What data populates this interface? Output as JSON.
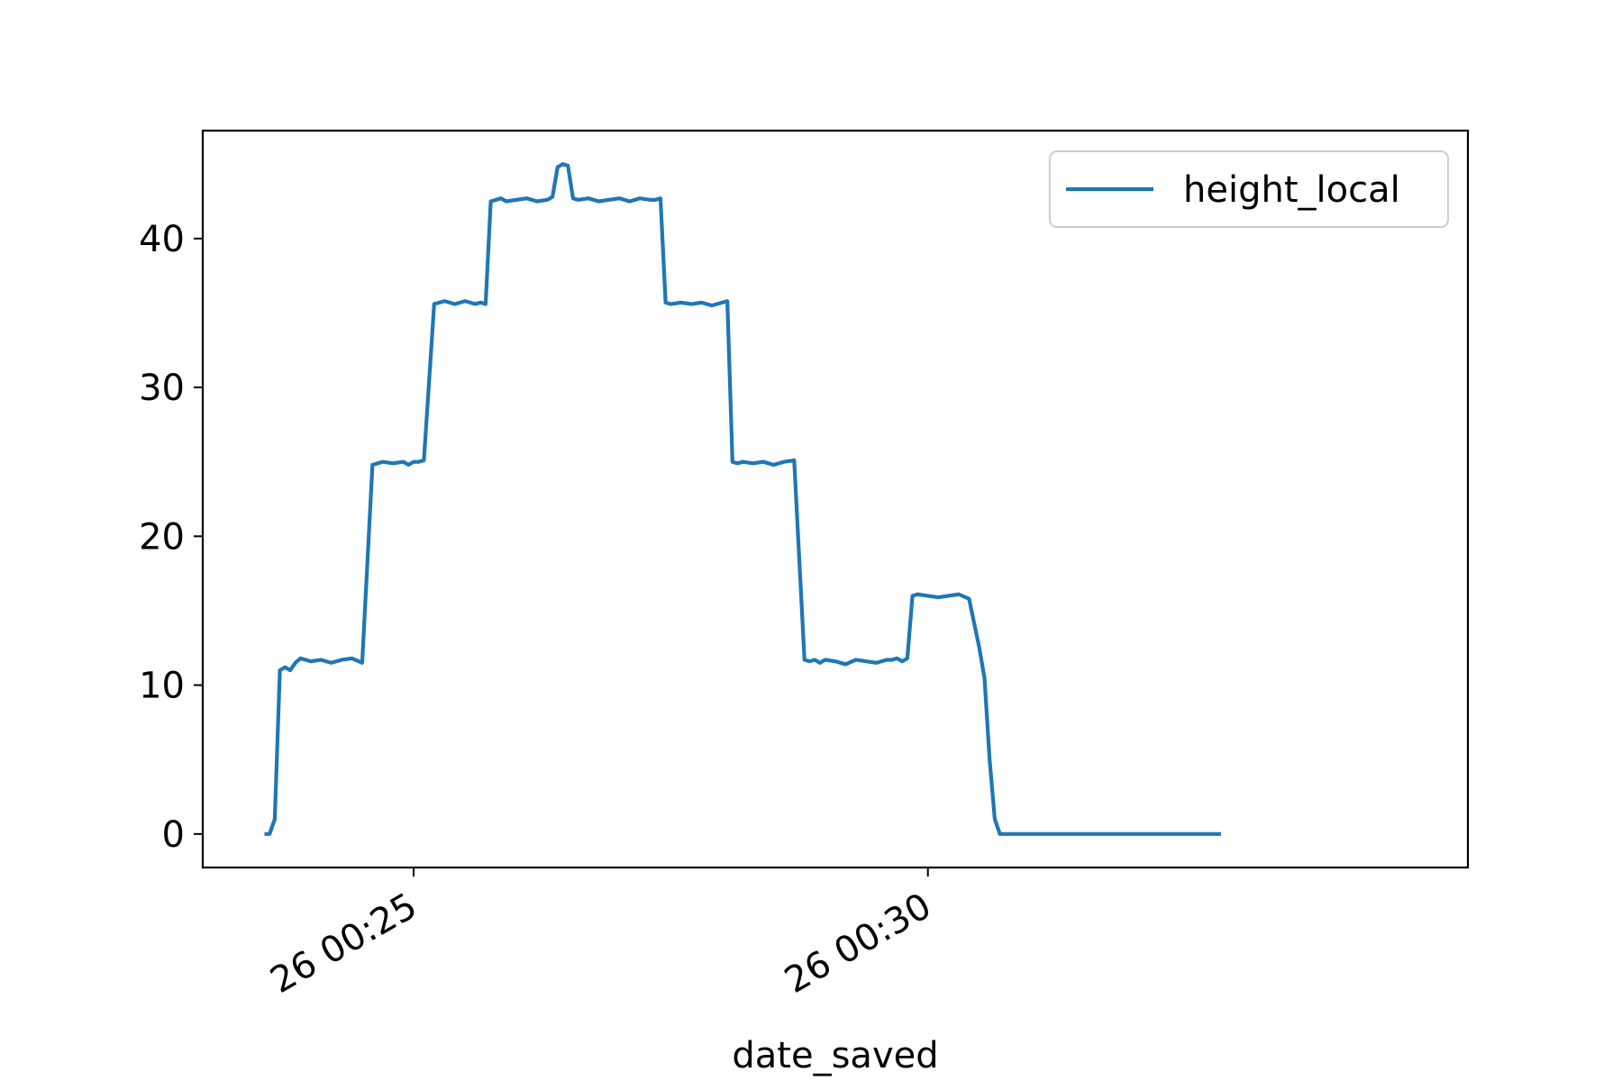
{
  "chart_data": {
    "type": "line",
    "xlabel": "date_saved",
    "ylabel": "",
    "title": "",
    "x_unit": "minutes (plotted in mm:ss relative to 00:20 as fractional minutes)",
    "xlim": [
      22.95,
      35.25
    ],
    "ylim": [
      -2.25,
      47.25
    ],
    "x_ticks": [
      {
        "value": 25,
        "label": "26 00:25"
      },
      {
        "value": 30,
        "label": "26 00:30"
      }
    ],
    "y_ticks": [
      {
        "value": 0,
        "label": "0"
      },
      {
        "value": 10,
        "label": "10"
      },
      {
        "value": 20,
        "label": "20"
      },
      {
        "value": 30,
        "label": "30"
      },
      {
        "value": 40,
        "label": "40"
      }
    ],
    "grid": false,
    "legend": {
      "position": "top-right",
      "entries": [
        "height_local"
      ]
    },
    "series": [
      {
        "name": "height_local",
        "color": "#1f77b4",
        "x": [
          23.55,
          23.6,
          23.65,
          23.7,
          23.75,
          23.8,
          23.85,
          23.9,
          24.0,
          24.1,
          24.2,
          24.3,
          24.4,
          24.5,
          24.6,
          24.7,
          24.8,
          24.9,
          24.95,
          25.0,
          25.05,
          25.1,
          25.2,
          25.3,
          25.4,
          25.5,
          25.6,
          25.65,
          25.7,
          25.75,
          25.8,
          25.85,
          25.9,
          26.0,
          26.1,
          26.2,
          26.3,
          26.35,
          26.4,
          26.45,
          26.5,
          26.55,
          26.6,
          26.7,
          26.8,
          26.9,
          27.0,
          27.1,
          27.2,
          27.3,
          27.35,
          27.4,
          27.45,
          27.5,
          27.6,
          27.7,
          27.8,
          27.9,
          28.0,
          28.05,
          28.1,
          28.15,
          28.2,
          28.3,
          28.4,
          28.5,
          28.6,
          28.7,
          28.8,
          28.85,
          28.9,
          28.95,
          29.0,
          29.1,
          29.2,
          29.3,
          29.4,
          29.5,
          29.6,
          29.65,
          29.7,
          29.75,
          29.8,
          29.85,
          29.9,
          30.0,
          30.1,
          30.2,
          30.3,
          30.4,
          30.5,
          30.55,
          30.6,
          30.65,
          30.7,
          30.75,
          30.8,
          30.85,
          30.9,
          30.95,
          31.0,
          31.05,
          31.1,
          31.15,
          31.2,
          31.25,
          31.3,
          31.35,
          31.5,
          31.8,
          32.0,
          32.2,
          32.5,
          32.85
        ],
        "y": [
          0,
          0,
          1,
          11,
          11.2,
          11,
          11.5,
          11.8,
          11.6,
          11.7,
          11.5,
          11.7,
          11.8,
          11.5,
          24.8,
          25.0,
          24.9,
          25.0,
          24.8,
          25.0,
          25.0,
          25.1,
          35.6,
          35.8,
          35.6,
          35.8,
          35.6,
          35.7,
          35.6,
          42.5,
          42.6,
          42.7,
          42.5,
          42.6,
          42.7,
          42.5,
          42.6,
          42.8,
          44.8,
          45.0,
          44.9,
          42.7,
          42.6,
          42.7,
          42.5,
          42.6,
          42.7,
          42.5,
          42.7,
          42.6,
          42.6,
          42.7,
          35.7,
          35.6,
          35.7,
          35.6,
          35.7,
          35.5,
          35.7,
          35.8,
          25.0,
          24.9,
          25.0,
          24.9,
          25.0,
          24.8,
          25.0,
          25.1,
          11.7,
          11.6,
          11.7,
          11.5,
          11.7,
          11.6,
          11.4,
          11.7,
          11.6,
          11.5,
          11.7,
          11.7,
          11.8,
          11.6,
          11.8,
          16.0,
          16.1,
          16.0,
          15.9,
          16.0,
          16.1,
          15.8,
          12.5,
          10.5,
          5.0,
          1.0,
          0,
          0,
          0,
          0,
          0,
          0,
          0,
          0,
          0,
          0,
          0,
          0,
          0,
          0,
          0,
          0,
          0,
          0,
          0,
          0
        ]
      }
    ]
  }
}
